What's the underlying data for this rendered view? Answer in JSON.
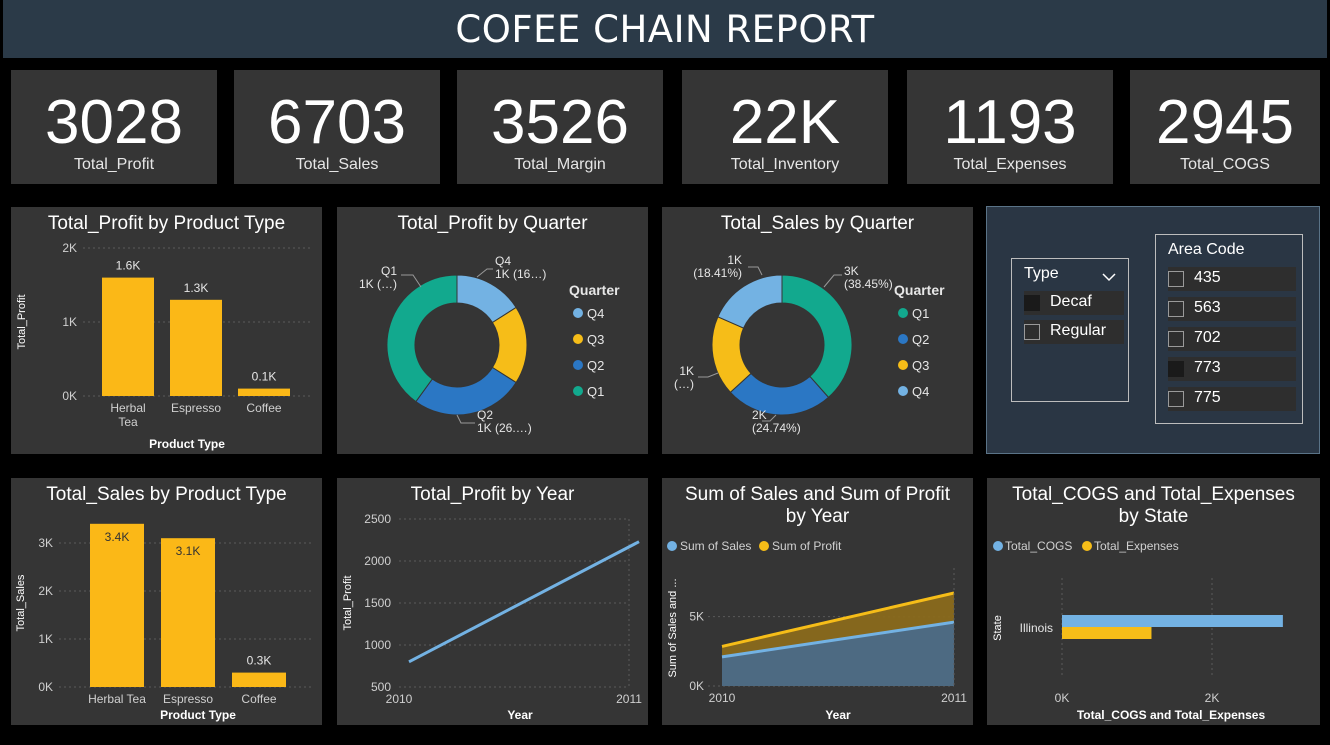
{
  "title": "COFEE CHAIN REPORT",
  "kpis": [
    {
      "value": "3028",
      "label": "Total_Profit"
    },
    {
      "value": "6703",
      "label": "Total_Sales"
    },
    {
      "value": "3526",
      "label": "Total_Margin"
    },
    {
      "value": "22K",
      "label": "Total_Inventory"
    },
    {
      "value": "1193",
      "label": "Total_Expenses"
    },
    {
      "value": "2945",
      "label": "Total_COGS"
    }
  ],
  "colors": {
    "bar": "#fbb817",
    "q_light": "#73b2e3",
    "q_yellow": "#f6bd18",
    "q_blue": "#2b77c4",
    "q_teal": "#12a98e",
    "card": "#353535"
  },
  "slicers": {
    "type": {
      "header": "Type",
      "items": [
        {
          "label": "Decaf",
          "checked": true
        },
        {
          "label": "Regular",
          "checked": false
        }
      ]
    },
    "area": {
      "header": "Area Code",
      "items": [
        {
          "label": "435",
          "checked": false
        },
        {
          "label": "563",
          "checked": false
        },
        {
          "label": "702",
          "checked": false
        },
        {
          "label": "773",
          "checked": true
        },
        {
          "label": "775",
          "checked": false
        }
      ]
    }
  },
  "chart_data": [
    {
      "type": "bar",
      "title": "Total_Profit by Product Type",
      "categories": [
        "Herbal Tea",
        "Espresso",
        "Coffee"
      ],
      "values": [
        1600,
        1300,
        100
      ],
      "data_labels": [
        "1.6K",
        "1.3K",
        "0.1K"
      ],
      "xlabel": "Product Type",
      "ylabel": "Total_Profit",
      "yticks": [
        "0K",
        "1K",
        "2K"
      ],
      "ylim": [
        0,
        2000
      ]
    },
    {
      "type": "pie",
      "title": "Total_Profit by Quarter",
      "legend_title": "Quarter",
      "legend": [
        "Q4",
        "Q3",
        "Q2",
        "Q1"
      ],
      "slices": [
        {
          "name": "Q4",
          "value": 16,
          "label_top": "Q4",
          "label_bottom": "1K (16…)"
        },
        {
          "name": "Q3",
          "value": 18
        },
        {
          "name": "Q2",
          "value": 26,
          "label_top": "Q2",
          "label_bottom": "1K (26.…)"
        },
        {
          "name": "Q1",
          "value": 40,
          "label_top": "Q1",
          "label_bottom": "1K (…)"
        }
      ]
    },
    {
      "type": "pie",
      "title": "Total_Sales by Quarter",
      "legend_title": "Quarter",
      "legend": [
        "Q1",
        "Q2",
        "Q3",
        "Q4"
      ],
      "slices": [
        {
          "name": "Q1",
          "value": 38.45,
          "label_top": "3K",
          "label_bottom": "(38.45%)"
        },
        {
          "name": "Q2",
          "value": 24.74,
          "label_top": "2K",
          "label_bottom": "(24.74%)"
        },
        {
          "name": "Q3",
          "value": 18.4,
          "label_top": "1K",
          "label_bottom": "(…)"
        },
        {
          "name": "Q4",
          "value": 18.41,
          "label_top": "1K",
          "label_bottom": "(18.41%)"
        }
      ]
    },
    {
      "type": "bar",
      "title": "Total_Sales by Product Type",
      "categories": [
        "Herbal Tea",
        "Espresso",
        "Coffee"
      ],
      "values": [
        3400,
        3100,
        300
      ],
      "data_labels": [
        "3.4K",
        "3.1K",
        "0.3K"
      ],
      "xlabel": "Product Type",
      "ylabel": "Total_Sales",
      "yticks": [
        "0K",
        "1K",
        "2K",
        "3K"
      ],
      "ylim": [
        0,
        3500
      ]
    },
    {
      "type": "line",
      "title": "Total_Profit by Year",
      "x": [
        "2010",
        "2011"
      ],
      "values": [
        800,
        2230
      ],
      "xlabel": "Year",
      "ylabel": "Total_Profit",
      "yticks": [
        "500",
        "1000",
        "1500",
        "2000",
        "2500"
      ],
      "ylim": [
        500,
        2500
      ]
    },
    {
      "type": "area",
      "title": "Sum of Sales and Sum of Profit by Year",
      "x": [
        "2010",
        "2011"
      ],
      "series": [
        {
          "name": "Sum of Sales",
          "values": [
            2100,
            4600
          ]
        },
        {
          "name": "Sum of Profit",
          "values": [
            2850,
            6700
          ]
        }
      ],
      "xlabel": "Year",
      "ylabel": "Sum of Sales and ...",
      "yticks": [
        "0K",
        "5K"
      ],
      "ylim": [
        0,
        8500
      ]
    },
    {
      "type": "bar",
      "title": "Total_COGS and Total_Expenses by State",
      "categories": [
        "Illinois"
      ],
      "series": [
        {
          "name": "Total_COGS",
          "values": [
            2945
          ]
        },
        {
          "name": "Total_Expenses",
          "values": [
            1193
          ]
        }
      ],
      "xlabel": "Total_COGS and Total_Expenses",
      "ylabel": "State",
      "xticks": [
        "0K",
        "2K"
      ],
      "xlim": [
        0,
        3200
      ]
    }
  ]
}
